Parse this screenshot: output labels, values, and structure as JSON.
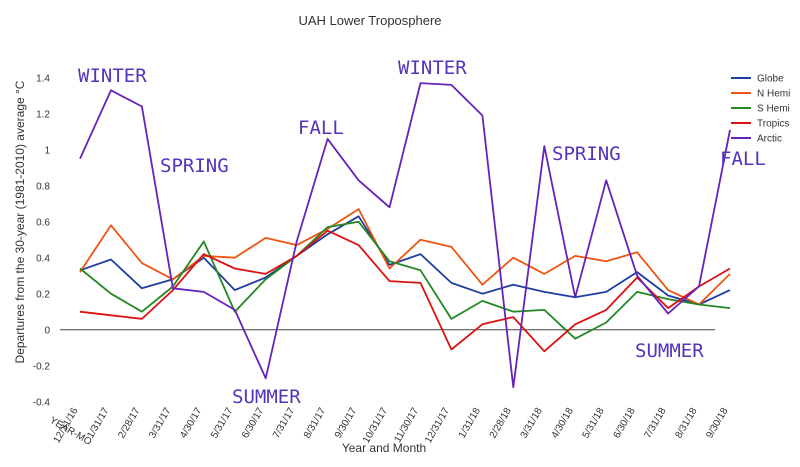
{
  "chart_data": {
    "type": "line",
    "title": "UAH Lower Troposphere",
    "xlabel": "Year and Month",
    "ylabel": "Departures from the 30-year (1981-2010) average °C",
    "x_axis_prefix": "YEAR-MO",
    "categories": [
      "12/31/16",
      "1/31/17",
      "2/28/17",
      "3/31/17",
      "4/30/17",
      "5/31/17",
      "6/30/17",
      "7/31/17",
      "8/31/17",
      "9/30/17",
      "10/31/17",
      "11/30/17",
      "12/31/17",
      "1/31/18",
      "2/28/18",
      "3/31/18",
      "4/30/18",
      "5/31/18",
      "6/30/18",
      "7/31/18",
      "8/31/18",
      "9/30/18"
    ],
    "ylim": [
      -0.4,
      1.4
    ],
    "yticks": [
      -0.4,
      -0.2,
      0,
      0.2,
      0.4,
      0.6,
      0.8,
      1,
      1.2,
      1.4
    ],
    "ytick_labels": [
      "-0.4",
      "-0.2",
      "0",
      "0.2",
      "0.4",
      "0.6",
      "0.8",
      "1",
      "1.2",
      "1.4"
    ],
    "grid": false,
    "legend_position": "top-right",
    "series": [
      {
        "name": "Globe",
        "color": "#1f3f9f",
        "values": [
          0.33,
          0.39,
          0.23,
          0.28,
          0.4,
          0.22,
          0.29,
          0.41,
          0.53,
          0.63,
          0.36,
          0.42,
          0.26,
          0.2,
          0.25,
          0.21,
          0.18,
          0.21,
          0.32,
          0.19,
          0.14,
          0.22
        ]
      },
      {
        "name": "N Hemi",
        "color": "#ee5511",
        "values": [
          0.32,
          0.58,
          0.37,
          0.28,
          0.41,
          0.4,
          0.51,
          0.47,
          0.56,
          0.67,
          0.34,
          0.5,
          0.46,
          0.25,
          0.4,
          0.31,
          0.41,
          0.38,
          0.43,
          0.22,
          0.14,
          0.31
        ]
      },
      {
        "name": "S Hemi",
        "color": "#228822",
        "values": [
          0.34,
          0.2,
          0.1,
          0.24,
          0.49,
          0.1,
          0.28,
          0.41,
          0.57,
          0.6,
          0.38,
          0.33,
          0.06,
          0.16,
          0.1,
          0.11,
          -0.05,
          0.04,
          0.21,
          0.17,
          0.14,
          0.12
        ]
      },
      {
        "name": "Tropics",
        "color": "#dd1111",
        "values": [
          0.1,
          0.08,
          0.06,
          0.22,
          0.42,
          0.34,
          0.31,
          0.41,
          0.55,
          0.47,
          0.27,
          0.26,
          -0.11,
          0.03,
          0.07,
          -0.12,
          0.03,
          0.11,
          0.29,
          0.12,
          0.24,
          0.34
        ]
      },
      {
        "name": "Arctic",
        "color": "#6622bb",
        "values": [
          0.95,
          1.33,
          1.24,
          0.23,
          0.21,
          0.11,
          -0.27,
          0.49,
          1.06,
          0.83,
          0.68,
          1.37,
          1.36,
          1.19,
          -0.32,
          1.02,
          0.18,
          0.83,
          0.3,
          0.09,
          0.24,
          1.11
        ]
      }
    ],
    "annotations": [
      "WINTER",
      "SPRING",
      "FALL",
      "SUMMER",
      "WINTER",
      "SPRING",
      "FALL",
      "SUMMER"
    ]
  }
}
